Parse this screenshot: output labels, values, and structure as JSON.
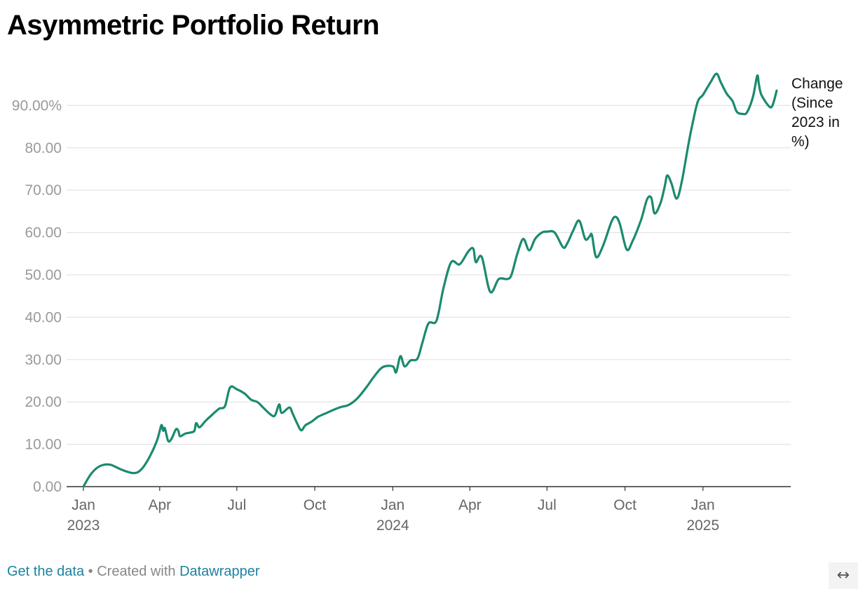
{
  "title": "Asymmetric Portfolio Return",
  "footer": {
    "get_data": "Get the data",
    "separator": "•",
    "created_with": "Created with",
    "datawrapper": "Datawrapper"
  },
  "expand_icon": "↔",
  "colors": {
    "line": "#1b8a6f",
    "grid": "#e3e3e3",
    "axis": "#333333"
  },
  "chart_data": {
    "type": "line",
    "title": "Asymmetric Portfolio Return",
    "xlabel": "",
    "ylabel": "",
    "ylim": [
      0,
      100
    ],
    "y_ticks": [
      0,
      10,
      20,
      30,
      40,
      50,
      60,
      70,
      80,
      90
    ],
    "y_tick_labels": [
      "0.00",
      "10.00",
      "20.00",
      "30.00",
      "40.00",
      "50.00",
      "60.00",
      "70.00",
      "80.00",
      "90.00%"
    ],
    "xlim": [
      "2023-01-01",
      "2025-03-14"
    ],
    "x_ticks": [
      {
        "date": "2023-01-01",
        "label": "Jan",
        "year": "2023"
      },
      {
        "date": "2023-04-01",
        "label": "Apr",
        "year": ""
      },
      {
        "date": "2023-07-01",
        "label": "Jul",
        "year": ""
      },
      {
        "date": "2023-10-01",
        "label": "Oct",
        "year": ""
      },
      {
        "date": "2024-01-01",
        "label": "Jan",
        "year": "2024"
      },
      {
        "date": "2024-04-01",
        "label": "Apr",
        "year": ""
      },
      {
        "date": "2024-07-01",
        "label": "Jul",
        "year": ""
      },
      {
        "date": "2024-10-01",
        "label": "Oct",
        "year": ""
      },
      {
        "date": "2025-01-01",
        "label": "Jan",
        "year": "2025"
      }
    ],
    "grid": true,
    "series": [
      {
        "name": "Change (Since 2023 in %)",
        "label_lines": [
          "Change",
          "(Since",
          "2023 in",
          "%)"
        ],
        "color": "#1b8a6f",
        "points": [
          [
            "2023-01-01",
            0
          ],
          [
            "2023-01-10",
            3.0
          ],
          [
            "2023-01-20",
            4.8
          ],
          [
            "2023-02-01",
            5.2
          ],
          [
            "2023-02-15",
            4.0
          ],
          [
            "2023-03-01",
            3.2
          ],
          [
            "2023-03-10",
            4.0
          ],
          [
            "2023-03-20",
            7.0
          ],
          [
            "2023-03-29",
            11.0
          ],
          [
            "2023-04-03",
            14.5
          ],
          [
            "2023-04-05",
            13.2
          ],
          [
            "2023-04-07",
            13.8
          ],
          [
            "2023-04-11",
            10.8
          ],
          [
            "2023-04-15",
            11.3
          ],
          [
            "2023-04-20",
            13.5
          ],
          [
            "2023-04-23",
            13.2
          ],
          [
            "2023-04-25",
            11.9
          ],
          [
            "2023-05-01",
            12.5
          ],
          [
            "2023-05-08",
            12.8
          ],
          [
            "2023-05-12",
            13.2
          ],
          [
            "2023-05-14",
            15.0
          ],
          [
            "2023-05-18",
            14.0
          ],
          [
            "2023-05-25",
            15.5
          ],
          [
            "2023-06-01",
            16.8
          ],
          [
            "2023-06-10",
            18.4
          ],
          [
            "2023-06-17",
            19.0
          ],
          [
            "2023-06-23",
            23.4
          ],
          [
            "2023-07-01",
            23.0
          ],
          [
            "2023-07-10",
            22.0
          ],
          [
            "2023-07-18",
            20.5
          ],
          [
            "2023-07-25",
            20.0
          ],
          [
            "2023-08-01",
            18.7
          ],
          [
            "2023-08-10",
            17.0
          ],
          [
            "2023-08-15",
            16.8
          ],
          [
            "2023-08-20",
            19.4
          ],
          [
            "2023-08-23",
            17.4
          ],
          [
            "2023-09-01",
            18.7
          ],
          [
            "2023-09-05",
            17.2
          ],
          [
            "2023-09-10",
            15.0
          ],
          [
            "2023-09-15",
            13.3
          ],
          [
            "2023-09-20",
            14.5
          ],
          [
            "2023-09-27",
            15.3
          ],
          [
            "2023-10-05",
            16.5
          ],
          [
            "2023-10-15",
            17.4
          ],
          [
            "2023-10-25",
            18.3
          ],
          [
            "2023-11-01",
            18.8
          ],
          [
            "2023-11-10",
            19.3
          ],
          [
            "2023-11-20",
            20.8
          ],
          [
            "2023-12-01",
            23.5
          ],
          [
            "2023-12-10",
            26.0
          ],
          [
            "2023-12-20",
            28.2
          ],
          [
            "2024-01-01",
            28.4
          ],
          [
            "2024-01-05",
            27.0
          ],
          [
            "2024-01-10",
            30.8
          ],
          [
            "2024-01-15",
            28.4
          ],
          [
            "2024-01-22",
            29.8
          ],
          [
            "2024-01-30",
            30.2
          ],
          [
            "2024-02-05",
            34.0
          ],
          [
            "2024-02-12",
            38.5
          ],
          [
            "2024-02-20",
            38.7
          ],
          [
            "2024-02-24",
            41.0
          ],
          [
            "2024-03-01",
            47.0
          ],
          [
            "2024-03-10",
            53.0
          ],
          [
            "2024-03-20",
            52.5
          ],
          [
            "2024-03-30",
            55.5
          ],
          [
            "2024-04-05",
            56.2
          ],
          [
            "2024-04-08",
            53.0
          ],
          [
            "2024-04-15",
            54.2
          ],
          [
            "2024-04-25",
            46.0
          ],
          [
            "2024-05-05",
            49.0
          ],
          [
            "2024-05-15",
            49.0
          ],
          [
            "2024-05-20",
            50.0
          ],
          [
            "2024-05-27",
            55.0
          ],
          [
            "2024-06-03",
            58.5
          ],
          [
            "2024-06-10",
            55.8
          ],
          [
            "2024-06-17",
            58.5
          ],
          [
            "2024-06-25",
            60.0
          ],
          [
            "2024-07-01",
            60.2
          ],
          [
            "2024-07-10",
            60.0
          ],
          [
            "2024-07-20",
            56.5
          ],
          [
            "2024-07-25",
            57.5
          ],
          [
            "2024-08-01",
            60.5
          ],
          [
            "2024-08-08",
            62.8
          ],
          [
            "2024-08-15",
            58.5
          ],
          [
            "2024-08-20",
            59.0
          ],
          [
            "2024-08-23",
            59.4
          ],
          [
            "2024-08-28",
            54.2
          ],
          [
            "2024-09-05",
            56.8
          ],
          [
            "2024-09-15",
            62.5
          ],
          [
            "2024-09-20",
            63.7
          ],
          [
            "2024-09-25",
            62.0
          ],
          [
            "2024-10-03",
            56.0
          ],
          [
            "2024-10-10",
            58.0
          ],
          [
            "2024-10-20",
            63.0
          ],
          [
            "2024-10-27",
            67.8
          ],
          [
            "2024-11-01",
            68.2
          ],
          [
            "2024-11-05",
            64.5
          ],
          [
            "2024-11-12",
            67.0
          ],
          [
            "2024-11-17",
            71.0
          ],
          [
            "2024-11-20",
            73.5
          ],
          [
            "2024-11-25",
            71.5
          ],
          [
            "2024-12-01",
            68.0
          ],
          [
            "2024-12-07",
            72.0
          ],
          [
            "2024-12-15",
            81.0
          ],
          [
            "2024-12-20",
            86.0
          ],
          [
            "2024-12-26",
            91.0
          ],
          [
            "2025-01-01",
            92.5
          ],
          [
            "2025-01-10",
            95.5
          ],
          [
            "2025-01-17",
            97.5
          ],
          [
            "2025-01-22",
            95.5
          ],
          [
            "2025-01-29",
            92.8
          ],
          [
            "2025-02-05",
            91.0
          ],
          [
            "2025-02-10",
            88.5
          ],
          [
            "2025-02-17",
            88.0
          ],
          [
            "2025-02-22",
            88.4
          ],
          [
            "2025-03-01",
            92.0
          ],
          [
            "2025-03-06",
            97.0
          ],
          [
            "2025-03-08",
            95.0
          ],
          [
            "2025-03-11",
            92.5
          ],
          [
            "2025-03-20",
            89.8
          ],
          [
            "2025-03-24",
            90.0
          ],
          [
            "2025-03-29",
            93.5
          ]
        ]
      }
    ]
  }
}
